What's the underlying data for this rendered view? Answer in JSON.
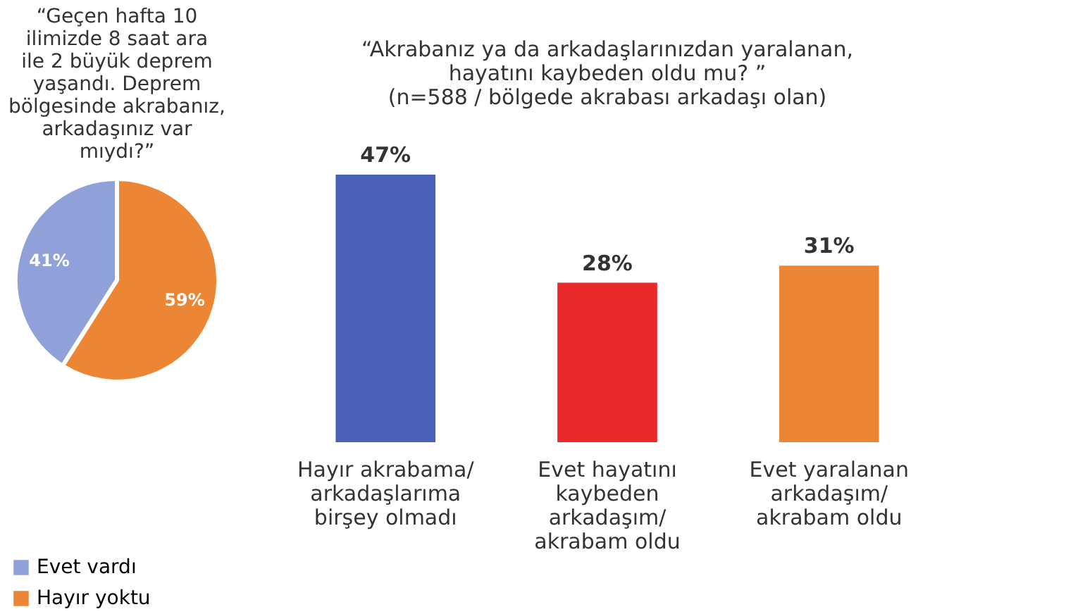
{
  "chart_data": [
    {
      "type": "pie",
      "title": "“Geçen hafta 10 ilimizde 8 saat ara ile 2 büyük deprem yaşandı. Deprem bölgesinde akrabanız, arkadaşınız var mıydı?”",
      "categories": [
        "Evet vardı",
        "Hayır yoktu"
      ],
      "values": [
        41,
        59
      ],
      "colors": [
        "#8fa1d8",
        "#ec8634"
      ],
      "value_labels": [
        "41%",
        "59%"
      ],
      "legend": "bottom left"
    },
    {
      "type": "bar",
      "title": "“Akrabanız ya da arkadaşlarınızdan yaralanan, hayatını kaybeden oldu mu? ”",
      "subtitle": "(n=588 / bölgede akrabası arkadaşı olan)",
      "categories": [
        "Hayır akrabama/ arkadaşlarıma birşey olmadı",
        "Evet hayatını kaybeden arkadaşım/ akrabam oldu",
        "Evet yaralanan arkadaşım/ akrabam oldu"
      ],
      "values": [
        47,
        28,
        31
      ],
      "colors": [
        "#4a5fb8",
        "#e8292b",
        "#ec8634"
      ],
      "value_labels": [
        "47%",
        "28%",
        "31%"
      ]
    }
  ]
}
